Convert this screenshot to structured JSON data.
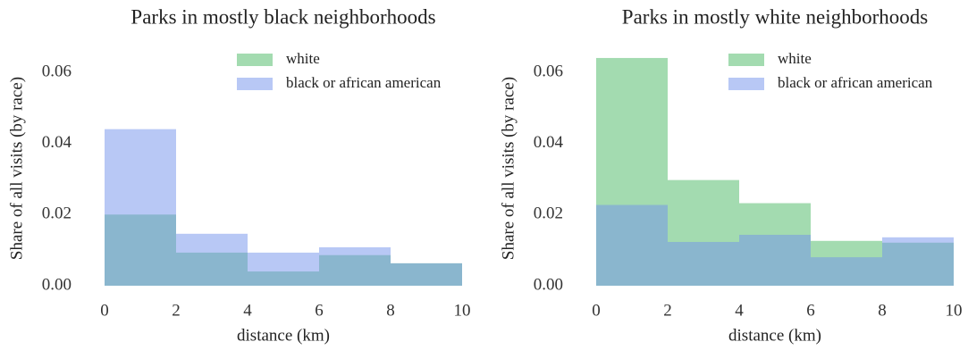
{
  "charts": [
    {
      "type": "histogram",
      "title": "Parks in mostly black neighborhoods",
      "xlabel": "distance (km)",
      "ylabel": "Share of all visits (by race)",
      "bins": [
        0,
        2,
        4,
        6,
        8,
        10
      ],
      "series": [
        {
          "name": "white",
          "color": "#47b761",
          "values": [
            0.02,
            0.0093,
            0.004,
            0.0086,
            0.0063
          ]
        },
        {
          "name": "black or african american",
          "color": "#7191eb",
          "values": [
            0.044,
            0.0146,
            0.0093,
            0.0108,
            0.0063
          ]
        }
      ],
      "xlim": [
        0,
        10
      ],
      "ylim": [
        0,
        0.067
      ],
      "xticks": [
        0,
        2,
        4,
        6,
        8,
        10
      ],
      "yticks": [
        {
          "value": 0,
          "label": "0.00"
        },
        {
          "value": 0.02,
          "label": "0.02"
        },
        {
          "value": 0.04,
          "label": "0.04"
        },
        {
          "value": 0.06,
          "label": "0.06"
        }
      ],
      "legend": "upper center"
    },
    {
      "type": "histogram",
      "title": "Parks in mostly white neighborhoods",
      "xlabel": "distance (km)",
      "ylabel": "Share of all visits (by race)",
      "bins": [
        0,
        2,
        4,
        6,
        8,
        10
      ],
      "series": [
        {
          "name": "white",
          "color": "#47b761",
          "values": [
            0.064,
            0.0297,
            0.0232,
            0.0126,
            0.0121
          ]
        },
        {
          "name": "black or african american",
          "color": "#7191eb",
          "values": [
            0.0227,
            0.0123,
            0.0143,
            0.008,
            0.0136
          ]
        }
      ],
      "xlim": [
        0,
        10
      ],
      "ylim": [
        0,
        0.067
      ],
      "xticks": [
        0,
        2,
        4,
        6,
        8,
        10
      ],
      "yticks": [
        {
          "value": 0,
          "label": "0.00"
        },
        {
          "value": 0.02,
          "label": "0.02"
        },
        {
          "value": 0.04,
          "label": "0.04"
        },
        {
          "value": 0.06,
          "label": "0.06"
        }
      ],
      "legend": "upper center"
    }
  ]
}
